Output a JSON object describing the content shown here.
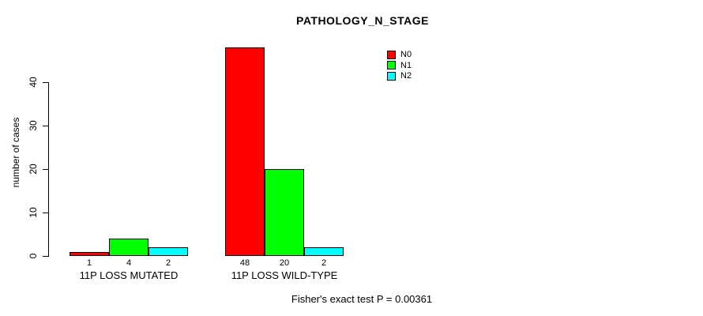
{
  "title": "PATHOLOGY_N_STAGE",
  "ylabel": "number of cases",
  "footer": "Fisher's exact test P = 0.00361",
  "legend": [
    {
      "label": "N0",
      "color": "#FF0000"
    },
    {
      "label": "N1",
      "color": "#00FF00"
    },
    {
      "label": "N2",
      "color": "#00FFFF"
    }
  ],
  "chart_data": {
    "type": "bar",
    "title": "PATHOLOGY_N_STAGE",
    "ylabel": "number of cases",
    "xlabel": "",
    "categories": [
      "11P LOSS MUTATED",
      "11P LOSS WILD-TYPE"
    ],
    "series": [
      {
        "name": "N0",
        "color": "#FF0000",
        "values": [
          1,
          48
        ]
      },
      {
        "name": "N1",
        "color": "#00FF00",
        "values": [
          4,
          20
        ]
      },
      {
        "name": "N2",
        "color": "#00FFFF",
        "values": [
          2,
          2
        ]
      }
    ],
    "bar_value_labels": [
      [
        1,
        4,
        2
      ],
      [
        48,
        20,
        2
      ]
    ],
    "yticks": [
      0,
      10,
      20,
      30,
      40
    ],
    "ylim": [
      0,
      48
    ],
    "grid": false,
    "legend_position": "top-right",
    "annotation": "Fisher's exact test P = 0.00361"
  }
}
